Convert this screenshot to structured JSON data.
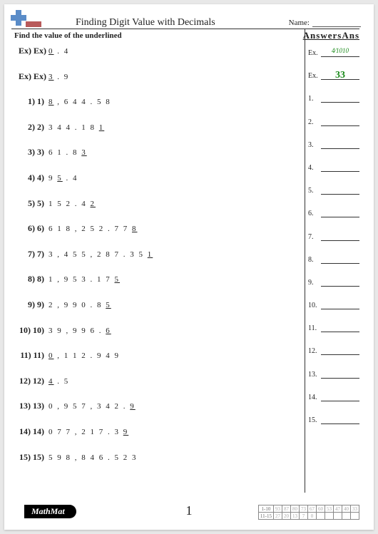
{
  "title": "Finding Digit Value with Decimals",
  "name_label": "Name:",
  "instruction": "Find the value of the underlined",
  "answers_header": "AnswersAns",
  "questions": [
    {
      "label": "Ex) Ex)",
      "pre": "",
      "u": "0",
      "post": " . 4"
    },
    {
      "label": "Ex) Ex)",
      "pre": "",
      "u": "3",
      "post": " . 9"
    },
    {
      "label": "1) 1)",
      "pre": "",
      "u": "8",
      "post": " , 6 4 4 . 5 8"
    },
    {
      "label": "2) 2)",
      "pre": "3 4 4 . 1 8 ",
      "u": "1",
      "post": ""
    },
    {
      "label": "3) 3)",
      "pre": "6 1 . 8 ",
      "u": "3",
      "post": ""
    },
    {
      "label": "4) 4)",
      "pre": "9 ",
      "u": "5",
      "post": " . 4"
    },
    {
      "label": "5) 5)",
      "pre": "1 5 2 . 4 ",
      "u": "2",
      "post": ""
    },
    {
      "label": "6) 6)",
      "pre": "6 1 8 , 2 5 2 . 7 7 ",
      "u": "8",
      "post": ""
    },
    {
      "label": "7) 7)",
      "pre": "3 , 4 5 5 , 2 8 7 . 3 5 ",
      "u": "1",
      "post": ""
    },
    {
      "label": "8) 8)",
      "pre": "1 , 9 5 3 . 1 7 ",
      "u": "5",
      "post": ""
    },
    {
      "label": "9) 9)",
      "pre": "2 , 9 9 0 . 8 ",
      "u": "5",
      "post": ""
    },
    {
      "label": "10) 10)",
      "pre": "3 9 , 9 9 6 . ",
      "u": "6",
      "post": ""
    },
    {
      "label": "11) 11)",
      "pre": "",
      "u": "0",
      "post": " , 1 1 2 . 9 4 9"
    },
    {
      "label": "12) 12)",
      "pre": "",
      "u": "4",
      "post": " . 5"
    },
    {
      "label": "13) 13)",
      "pre": "0 , 9 5 7 , 3 4 2 . ",
      "u": "9",
      "post": ""
    },
    {
      "label": "14) 14)",
      "pre": "0 7 7 , 2 1 7 . 3 ",
      "u": "9",
      "post": ""
    },
    {
      "label": "15) 15)",
      "pre": "5 9 8 , 8 4 6 . 5 2 3",
      "u": "",
      "post": ""
    }
  ],
  "answers": [
    {
      "label": "Ex.",
      "value": "4⁄1010",
      "cls": "ex1"
    },
    {
      "label": "Ex.",
      "value": "33",
      "cls": "ex2"
    },
    {
      "label": "1.",
      "value": "",
      "cls": ""
    },
    {
      "label": "2.",
      "value": "",
      "cls": ""
    },
    {
      "label": "3.",
      "value": "",
      "cls": ""
    },
    {
      "label": "4.",
      "value": "",
      "cls": ""
    },
    {
      "label": "5.",
      "value": "",
      "cls": ""
    },
    {
      "label": "6.",
      "value": "",
      "cls": ""
    },
    {
      "label": "7.",
      "value": "",
      "cls": ""
    },
    {
      "label": "8.",
      "value": "",
      "cls": ""
    },
    {
      "label": "9.",
      "value": "",
      "cls": ""
    },
    {
      "label": "10.",
      "value": "",
      "cls": ""
    },
    {
      "label": "11.",
      "value": "",
      "cls": ""
    },
    {
      "label": "12.",
      "value": "",
      "cls": ""
    },
    {
      "label": "13.",
      "value": "",
      "cls": ""
    },
    {
      "label": "14.",
      "value": "",
      "cls": ""
    },
    {
      "label": "15.",
      "value": "",
      "cls": ""
    }
  ],
  "footer": {
    "logo": "MathMat",
    "page": "1",
    "score_rows": [
      [
        "1-10",
        "93",
        "87",
        "80",
        "73",
        "67",
        "60",
        "53",
        "47",
        "40",
        "33"
      ],
      [
        "11-15",
        "27",
        "20",
        "13",
        "7",
        "0",
        "",
        "",
        "",
        "",
        ""
      ]
    ]
  },
  "icon_colors": {
    "blue": "#5a8cc8",
    "red": "#b85a5a"
  }
}
